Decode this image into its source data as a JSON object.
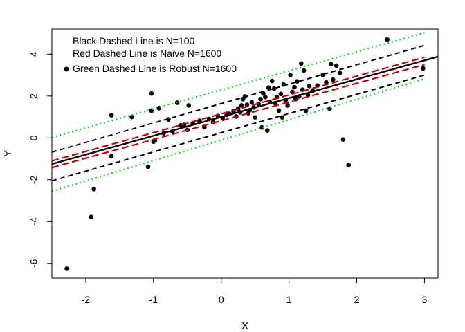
{
  "chart_data": {
    "type": "scatter",
    "title": "",
    "xlabel": "X",
    "ylabel": "Y",
    "xlim": [
      -2.5,
      3.2
    ],
    "ylim": [
      -6.7,
      5.2
    ],
    "xticks": [
      -2,
      -1,
      0,
      1,
      2,
      3
    ],
    "yticks": [
      -6,
      -4,
      -2,
      0,
      2,
      4
    ],
    "xtick_labels": [
      "-2",
      "-1",
      "0",
      "1",
      "2",
      "3"
    ],
    "ytick_labels": [
      "-6",
      "-4",
      "-2",
      "0",
      "2",
      "4"
    ],
    "grid": false,
    "legend_position": "top-left",
    "legend": [
      "Black Dashed Line is N=100",
      "Red Dashed Line is Naive N=1600",
      "Green Dashed Line is Robust N=1600"
    ],
    "colors": {
      "points": "#000000",
      "fit": "#000000",
      "black_band": "#000000",
      "red_band": "#cc0000",
      "green_band": "#00dd00"
    },
    "points": [
      [
        -2.28,
        -6.25
      ],
      [
        -1.92,
        -3.78
      ],
      [
        -1.88,
        -2.45
      ],
      [
        -1.62,
        1.08
      ],
      [
        -1.62,
        -0.88
      ],
      [
        -1.32,
        1.0
      ],
      [
        -1.08,
        -1.38
      ],
      [
        -1.03,
        2.12
      ],
      [
        -1.03,
        1.3
      ],
      [
        -1.0,
        -0.18
      ],
      [
        -0.98,
        -0.12
      ],
      [
        -0.92,
        1.42
      ],
      [
        -0.85,
        0.22
      ],
      [
        -0.78,
        0.88
      ],
      [
        -0.72,
        0.3
      ],
      [
        -0.65,
        1.68
      ],
      [
        -0.6,
        0.6
      ],
      [
        -0.55,
        0.62
      ],
      [
        -0.5,
        0.38
      ],
      [
        -0.48,
        1.55
      ],
      [
        -0.42,
        0.7
      ],
      [
        -0.32,
        0.82
      ],
      [
        -0.25,
        0.52
      ],
      [
        -0.18,
        0.9
      ],
      [
        -0.12,
        0.75
      ],
      [
        -0.05,
        1.05
      ],
      [
        0.02,
        0.95
      ],
      [
        0.08,
        1.1
      ],
      [
        0.12,
        1.15
      ],
      [
        0.18,
        1.28
      ],
      [
        0.22,
        1.02
      ],
      [
        0.25,
        1.4
      ],
      [
        0.28,
        1.22
      ],
      [
        0.3,
        1.55
      ],
      [
        0.32,
        1.85
      ],
      [
        0.35,
        1.98
      ],
      [
        0.38,
        1.58
      ],
      [
        0.4,
        1.18
      ],
      [
        0.42,
        1.32
      ],
      [
        0.45,
        1.7
      ],
      [
        0.48,
        1.45
      ],
      [
        0.5,
        0.98
      ],
      [
        0.55,
        1.62
      ],
      [
        0.58,
        1.85
      ],
      [
        0.6,
        0.5
      ],
      [
        0.62,
        2.12
      ],
      [
        0.65,
        1.95
      ],
      [
        0.68,
        0.35
      ],
      [
        0.7,
        2.4
      ],
      [
        0.72,
        1.7
      ],
      [
        0.75,
        2.72
      ],
      [
        0.78,
        2.35
      ],
      [
        0.8,
        1.65
      ],
      [
        0.82,
        1.95
      ],
      [
        0.85,
        1.3
      ],
      [
        0.88,
        2.1
      ],
      [
        0.9,
        0.98
      ],
      [
        0.92,
        2.55
      ],
      [
        0.95,
        1.8
      ],
      [
        0.98,
        1.55
      ],
      [
        1.02,
        3.0
      ],
      [
        1.05,
        2.2
      ],
      [
        1.08,
        2.42
      ],
      [
        1.1,
        1.85
      ],
      [
        1.12,
        2.7
      ],
      [
        1.15,
        1.98
      ],
      [
        1.18,
        3.55
      ],
      [
        1.2,
        2.3
      ],
      [
        1.22,
        3.22
      ],
      [
        1.25,
        1.3
      ],
      [
        1.28,
        2.05
      ],
      [
        1.3,
        2.48
      ],
      [
        1.35,
        2.25
      ],
      [
        1.42,
        2.5
      ],
      [
        1.5,
        3.0
      ],
      [
        1.55,
        2.65
      ],
      [
        1.6,
        1.4
      ],
      [
        1.62,
        3.52
      ],
      [
        1.65,
        2.78
      ],
      [
        1.7,
        3.45
      ],
      [
        1.75,
        3.1
      ],
      [
        1.8,
        -0.08
      ],
      [
        1.88,
        -1.3
      ],
      [
        2.45,
        4.7
      ],
      [
        2.98,
        3.32
      ]
    ],
    "fit_line": {
      "slope": 0.9,
      "intercept": 1.0
    },
    "black_band": {
      "upper": [
        [
          -2.5,
          -0.68
        ],
        [
          3.0,
          4.42
        ]
      ],
      "lower": [
        [
          -2.5,
          -2.05
        ],
        [
          3.0,
          3.0
        ]
      ],
      "dash": "dashed"
    },
    "red_band": {
      "upper": [
        [
          -2.5,
          -1.1
        ],
        [
          3.0,
          3.85
        ]
      ],
      "lower": [
        [
          -2.5,
          -1.42
        ],
        [
          3.0,
          3.5
        ]
      ],
      "dash": "dashed"
    },
    "green_band": {
      "upper": [
        [
          -2.5,
          0.02
        ],
        [
          3.0,
          5.02
        ]
      ],
      "lower": [
        [
          -2.5,
          -2.55
        ],
        [
          3.0,
          2.82
        ]
      ],
      "dash": "dotted"
    }
  }
}
